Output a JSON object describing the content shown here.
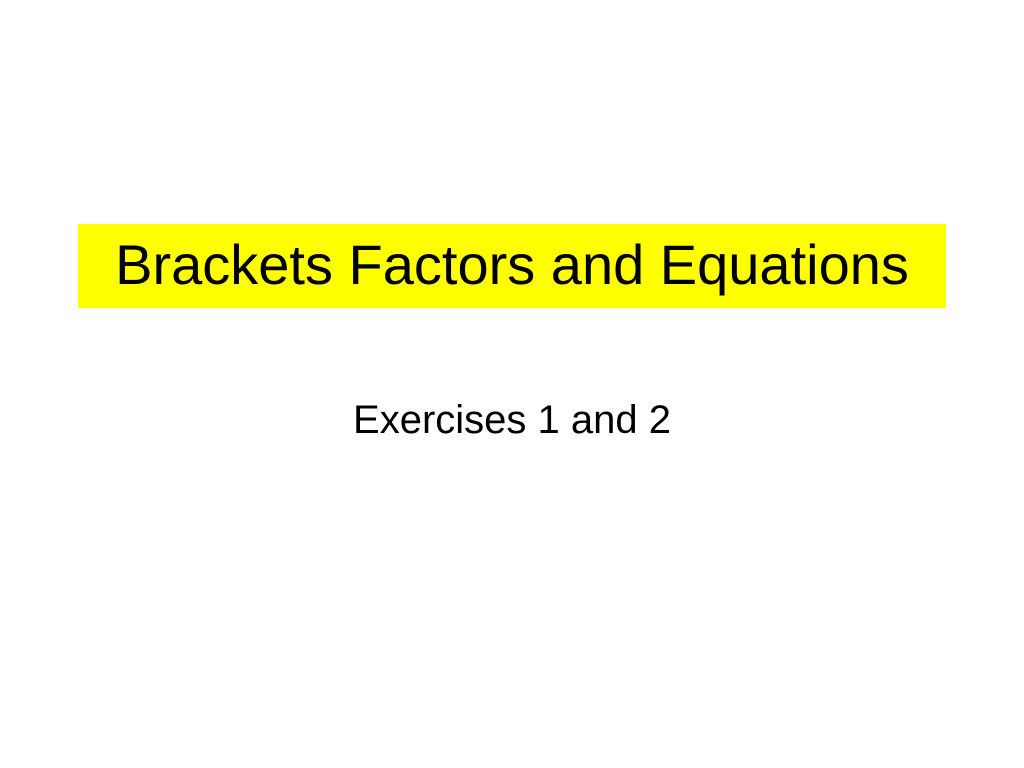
{
  "slide": {
    "title": "Brackets Factors and Equations",
    "subtitle": "Exercises 1 and 2",
    "title_bg_color": "#ffff00",
    "title_text_color": "#000000",
    "subtitle_text_color": "#000000",
    "background_color": "#ffffff",
    "title_fontsize": 56,
    "subtitle_fontsize": 40,
    "font_family": "Arial"
  }
}
